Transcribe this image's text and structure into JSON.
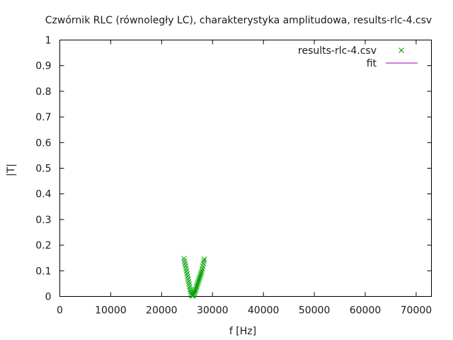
{
  "chart_data": {
    "type": "scatter",
    "title": "Czwórnik RLC (równoległy LC), charakterystyka amplitudowa, results-rlc-4.csv",
    "xlabel": "f [Hz]",
    "ylabel": "|T|",
    "xlim": [
      0,
      73000
    ],
    "ylim": [
      0,
      1
    ],
    "xticks": [
      0,
      10000,
      20000,
      30000,
      40000,
      50000,
      60000,
      70000
    ],
    "yticks": [
      0,
      0.1,
      0.2,
      0.3,
      0.4,
      0.5,
      0.6,
      0.7,
      0.8,
      0.9,
      1
    ],
    "ytick_labels": [
      "0",
      "0.1",
      "0.2",
      "0.3",
      "0.4",
      "0.5",
      "0.6",
      "0.7",
      "0.8",
      "0.9",
      "1"
    ],
    "grid": false,
    "legend_position": "top-right",
    "series": [
      {
        "name": "results-rlc-4.csv",
        "marker": "x",
        "color": "#00a000",
        "points": [
          [
            24400,
            0.148
          ],
          [
            24500,
            0.138
          ],
          [
            24600,
            0.128
          ],
          [
            24700,
            0.118
          ],
          [
            24800,
            0.108
          ],
          [
            24900,
            0.098
          ],
          [
            25000,
            0.088
          ],
          [
            25100,
            0.078
          ],
          [
            25200,
            0.068
          ],
          [
            25300,
            0.058
          ],
          [
            25400,
            0.048
          ],
          [
            25500,
            0.038
          ],
          [
            25600,
            0.028
          ],
          [
            25700,
            0.02
          ],
          [
            25800,
            0.012
          ],
          [
            25900,
            0.006
          ],
          [
            26000,
            0.003
          ],
          [
            26100,
            0.002
          ],
          [
            26200,
            0.004
          ],
          [
            26300,
            0.008
          ],
          [
            26400,
            0.012
          ],
          [
            26500,
            0.017
          ],
          [
            26600,
            0.022
          ],
          [
            26700,
            0.027
          ],
          [
            26800,
            0.033
          ],
          [
            26900,
            0.039
          ],
          [
            27000,
            0.045
          ],
          [
            27100,
            0.051
          ],
          [
            27200,
            0.057
          ],
          [
            27300,
            0.063
          ],
          [
            27400,
            0.069
          ],
          [
            27500,
            0.075
          ],
          [
            27600,
            0.081
          ],
          [
            27700,
            0.087
          ],
          [
            27800,
            0.093
          ],
          [
            27900,
            0.1
          ],
          [
            28000,
            0.108
          ],
          [
            28100,
            0.118
          ],
          [
            28200,
            0.128
          ],
          [
            28300,
            0.138
          ],
          [
            28400,
            0.145
          ]
        ]
      },
      {
        "name": "fit",
        "color": "#a000a0",
        "points": []
      }
    ]
  }
}
